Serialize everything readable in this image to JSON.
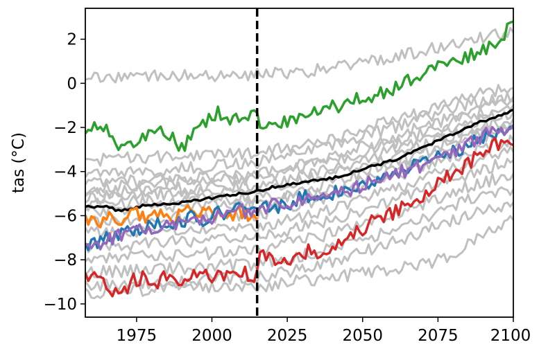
{
  "chart_data": {
    "type": "line",
    "title": "",
    "xlabel": "",
    "ylabel": "tas (°C)",
    "xlim": [
      1958,
      2100
    ],
    "ylim": [
      -10.6,
      3.4
    ],
    "x_ticks": [
      1975,
      2000,
      2025,
      2050,
      2075,
      2100
    ],
    "y_ticks": [
      -10,
      -8,
      -6,
      -4,
      -2,
      0,
      2
    ],
    "x_tick_labels": [
      "1975",
      "2000",
      "2025",
      "2050",
      "2075",
      "2100"
    ],
    "y_tick_labels": [
      "−10",
      "−8",
      "−6",
      "−4",
      "−2",
      "0",
      "2"
    ],
    "vertical_line": {
      "x": 2015,
      "style": "dashed",
      "color": "#000000"
    },
    "grid": false,
    "legend": "none",
    "background_series": {
      "color": "#c0c0c0",
      "lines": [
        {
          "x": [
            1958,
            1970,
            1985,
            2000,
            2015,
            2030,
            2045,
            2060,
            2075,
            2090,
            2100
          ],
          "values": [
            0.3,
            0.3,
            0.4,
            0.3,
            0.4,
            0.5,
            0.8,
            1.2,
            1.6,
            2.1,
            2.3
          ]
        },
        {
          "x": [
            1958,
            1985,
            2015,
            2040,
            2065,
            2085,
            2100
          ],
          "values": [
            -4.2,
            -3.9,
            -3.6,
            -2.8,
            -1.8,
            -0.9,
            -0.6
          ]
        },
        {
          "x": [
            1958,
            1985,
            2015,
            2040,
            2065,
            2085,
            2100
          ],
          "values": [
            -4.8,
            -4.5,
            -4.3,
            -3.5,
            -2.5,
            -1.5,
            -1.0
          ]
        },
        {
          "x": [
            1958,
            1985,
            2015,
            2040,
            2065,
            2085,
            2100
          ],
          "values": [
            -5.0,
            -4.8,
            -4.6,
            -3.9,
            -2.8,
            -1.8,
            -1.3
          ]
        },
        {
          "x": [
            1958,
            1985,
            2015,
            2040,
            2065,
            2085,
            2100
          ],
          "values": [
            -5.2,
            -5.0,
            -4.9,
            -4.1,
            -3.1,
            -2.1,
            -1.6
          ]
        },
        {
          "x": [
            1958,
            1985,
            2015,
            2040,
            2065,
            2085,
            2100
          ],
          "values": [
            -5.5,
            -5.3,
            -5.2,
            -4.5,
            -3.4,
            -2.4,
            -1.9
          ]
        },
        {
          "x": [
            1958,
            1985,
            2015,
            2040,
            2065,
            2085,
            2100
          ],
          "values": [
            -5.8,
            -5.6,
            -5.5,
            -4.8,
            -3.7,
            -2.6,
            -2.1
          ]
        },
        {
          "x": [
            1958,
            1985,
            2015,
            2040,
            2065,
            2085,
            2100
          ],
          "values": [
            -6.3,
            -6.1,
            -6.0,
            -5.2,
            -4.1,
            -3.1,
            -2.6
          ]
        },
        {
          "x": [
            1958,
            1985,
            2015,
            2040,
            2065,
            2085,
            2100
          ],
          "values": [
            -6.8,
            -6.6,
            -6.5,
            -5.7,
            -4.6,
            -3.6,
            -3.1
          ]
        },
        {
          "x": [
            1958,
            1985,
            2015,
            2040,
            2065,
            2085,
            2100
          ],
          "values": [
            -7.4,
            -7.2,
            -7.0,
            -6.2,
            -5.1,
            -4.1,
            -3.5
          ]
        },
        {
          "x": [
            1958,
            1985,
            2015,
            2040,
            2065,
            2085,
            2100
          ],
          "values": [
            -8.0,
            -7.8,
            -7.6,
            -6.8,
            -5.7,
            -4.7,
            -4.1
          ]
        },
        {
          "x": [
            1958,
            1985,
            2015,
            2040,
            2065,
            2085,
            2100
          ],
          "values": [
            -8.6,
            -8.4,
            -8.2,
            -7.5,
            -6.4,
            -5.3,
            -4.8
          ]
        },
        {
          "x": [
            1958,
            1985,
            2015,
            2040,
            2065,
            2085,
            2100
          ],
          "values": [
            -9.2,
            -9.0,
            -8.8,
            -8.1,
            -7.0,
            -6.0,
            -5.4
          ]
        },
        {
          "x": [
            1958,
            1985,
            2015,
            2040,
            2065,
            2080,
            2090,
            2100
          ],
          "values": [
            -9.5,
            -9.3,
            -9.2,
            -8.8,
            -8.3,
            -7.9,
            -6.8,
            -6.2
          ]
        },
        {
          "x": [
            1958,
            1985,
            2015,
            2040,
            2065,
            2085,
            2100
          ],
          "values": [
            -3.5,
            -3.3,
            -3.2,
            -2.5,
            -1.5,
            -0.6,
            -0.2
          ]
        },
        {
          "x": [
            1958,
            1985,
            2015,
            2040,
            2065,
            2085,
            2100
          ],
          "values": [
            -4.5,
            -4.4,
            -4.1,
            -3.3,
            -2.2,
            -1.3,
            -0.8
          ]
        }
      ]
    },
    "series": [
      {
        "color": "#2ca02c",
        "x": [
          1958,
          1962,
          1966,
          1970,
          1974,
          1978,
          1982,
          1986,
          1990,
          1994,
          1998,
          2002,
          2006,
          2010,
          2014,
          2018,
          2022,
          2026,
          2030,
          2035,
          2040,
          2045,
          2050,
          2055,
          2060,
          2065,
          2070,
          2075,
          2080,
          2085,
          2090,
          2095,
          2100
        ],
        "values": [
          -2.1,
          -1.9,
          -2.3,
          -2.9,
          -2.6,
          -2.4,
          -2.1,
          -2.4,
          -3.0,
          -2.2,
          -1.8,
          -1.3,
          -1.6,
          -1.5,
          -1.4,
          -2.1,
          -1.9,
          -1.6,
          -1.5,
          -1.3,
          -1.1,
          -0.9,
          -0.6,
          -0.5,
          -0.3,
          0.1,
          0.4,
          0.7,
          1.0,
          1.2,
          1.5,
          1.9,
          2.8
        ]
      },
      {
        "color": "#000000",
        "x": [
          1958,
          1965,
          1970,
          1975,
          1980,
          1985,
          1990,
          1995,
          2000,
          2005,
          2010,
          2015,
          2020,
          2025,
          2030,
          2035,
          2040,
          2045,
          2050,
          2055,
          2060,
          2065,
          2070,
          2075,
          2080,
          2085,
          2090,
          2095,
          2100
        ],
        "values": [
          -5.6,
          -5.6,
          -5.8,
          -5.6,
          -5.5,
          -5.5,
          -5.4,
          -5.3,
          -5.2,
          -5.1,
          -5.0,
          -4.9,
          -4.7,
          -4.6,
          -4.5,
          -4.4,
          -4.3,
          -4.1,
          -3.9,
          -3.7,
          -3.5,
          -3.2,
          -2.9,
          -2.6,
          -2.3,
          -2.0,
          -1.7,
          -1.5,
          -1.2
        ]
      },
      {
        "color": "#ff7f0e",
        "x": [
          1958,
          1962,
          1966,
          1970,
          1974,
          1978,
          1982,
          1986,
          1990,
          1994,
          1998,
          2002,
          2006,
          2010,
          2015
        ],
        "values": [
          -6.1,
          -6.3,
          -6.1,
          -6.2,
          -5.9,
          -6.0,
          -5.8,
          -6.1,
          -5.9,
          -5.7,
          -5.8,
          -5.9,
          -6.0,
          -5.8,
          -6.2
        ]
      },
      {
        "color": "#1f77b4",
        "x": [
          1958,
          1962,
          1966,
          1970,
          1974,
          1978,
          1982,
          1986,
          1990,
          1994,
          1998,
          2002,
          2006,
          2010,
          2014,
          2018,
          2022,
          2026,
          2030,
          2035,
          2040,
          2045,
          2050,
          2055,
          2060,
          2065,
          2070,
          2075,
          2080,
          2085,
          2090,
          2095,
          2100
        ],
        "values": [
          -7.3,
          -7.2,
          -6.9,
          -6.8,
          -6.6,
          -6.5,
          -6.4,
          -6.5,
          -6.3,
          -6.0,
          -6.2,
          -5.9,
          -5.8,
          -5.7,
          -5.6,
          -5.5,
          -5.6,
          -5.4,
          -5.2,
          -5.0,
          -5.0,
          -4.8,
          -4.6,
          -4.4,
          -4.1,
          -3.8,
          -3.6,
          -3.3,
          -3.1,
          -2.8,
          -2.5,
          -2.3,
          -2.0
        ]
      },
      {
        "color": "#9467bd",
        "x": [
          1958,
          1962,
          1966,
          1970,
          1974,
          1978,
          1982,
          1986,
          1990,
          1994,
          1998,
          2002,
          2006,
          2010,
          2014,
          2018,
          2022,
          2026,
          2030,
          2035,
          2040,
          2045,
          2050,
          2055,
          2060,
          2065,
          2070,
          2075,
          2080,
          2085,
          2090,
          2095,
          2100
        ],
        "values": [
          -7.4,
          -7.3,
          -7.1,
          -6.9,
          -6.8,
          -6.6,
          -6.5,
          -6.4,
          -6.3,
          -6.1,
          -6.2,
          -6.0,
          -5.9,
          -5.8,
          -5.8,
          -5.6,
          -5.5,
          -5.4,
          -5.3,
          -5.1,
          -5.0,
          -4.9,
          -4.6,
          -4.4,
          -4.2,
          -3.9,
          -3.7,
          -3.4,
          -3.1,
          -2.8,
          -2.4,
          -2.1,
          -1.9
        ]
      },
      {
        "color": "#d62728",
        "x": [
          1958,
          1962,
          1966,
          1970,
          1974,
          1978,
          1982,
          1986,
          1990,
          1994,
          1998,
          2002,
          2006,
          2010,
          2014,
          2016,
          2020,
          2024,
          2028,
          2032,
          2036,
          2040,
          2045,
          2050,
          2055,
          2060,
          2065,
          2070,
          2075,
          2080,
          2085,
          2090,
          2095,
          2100
        ],
        "values": [
          -8.7,
          -8.6,
          -9.3,
          -9.5,
          -8.9,
          -8.8,
          -9.0,
          -8.6,
          -9.2,
          -8.5,
          -8.7,
          -8.8,
          -8.5,
          -8.6,
          -8.7,
          -7.6,
          -8.0,
          -8.2,
          -8.0,
          -7.6,
          -7.7,
          -7.5,
          -7.0,
          -6.6,
          -6.1,
          -5.9,
          -5.4,
          -5.1,
          -4.4,
          -4.1,
          -3.6,
          -3.2,
          -2.7,
          -2.8
        ]
      }
    ]
  }
}
